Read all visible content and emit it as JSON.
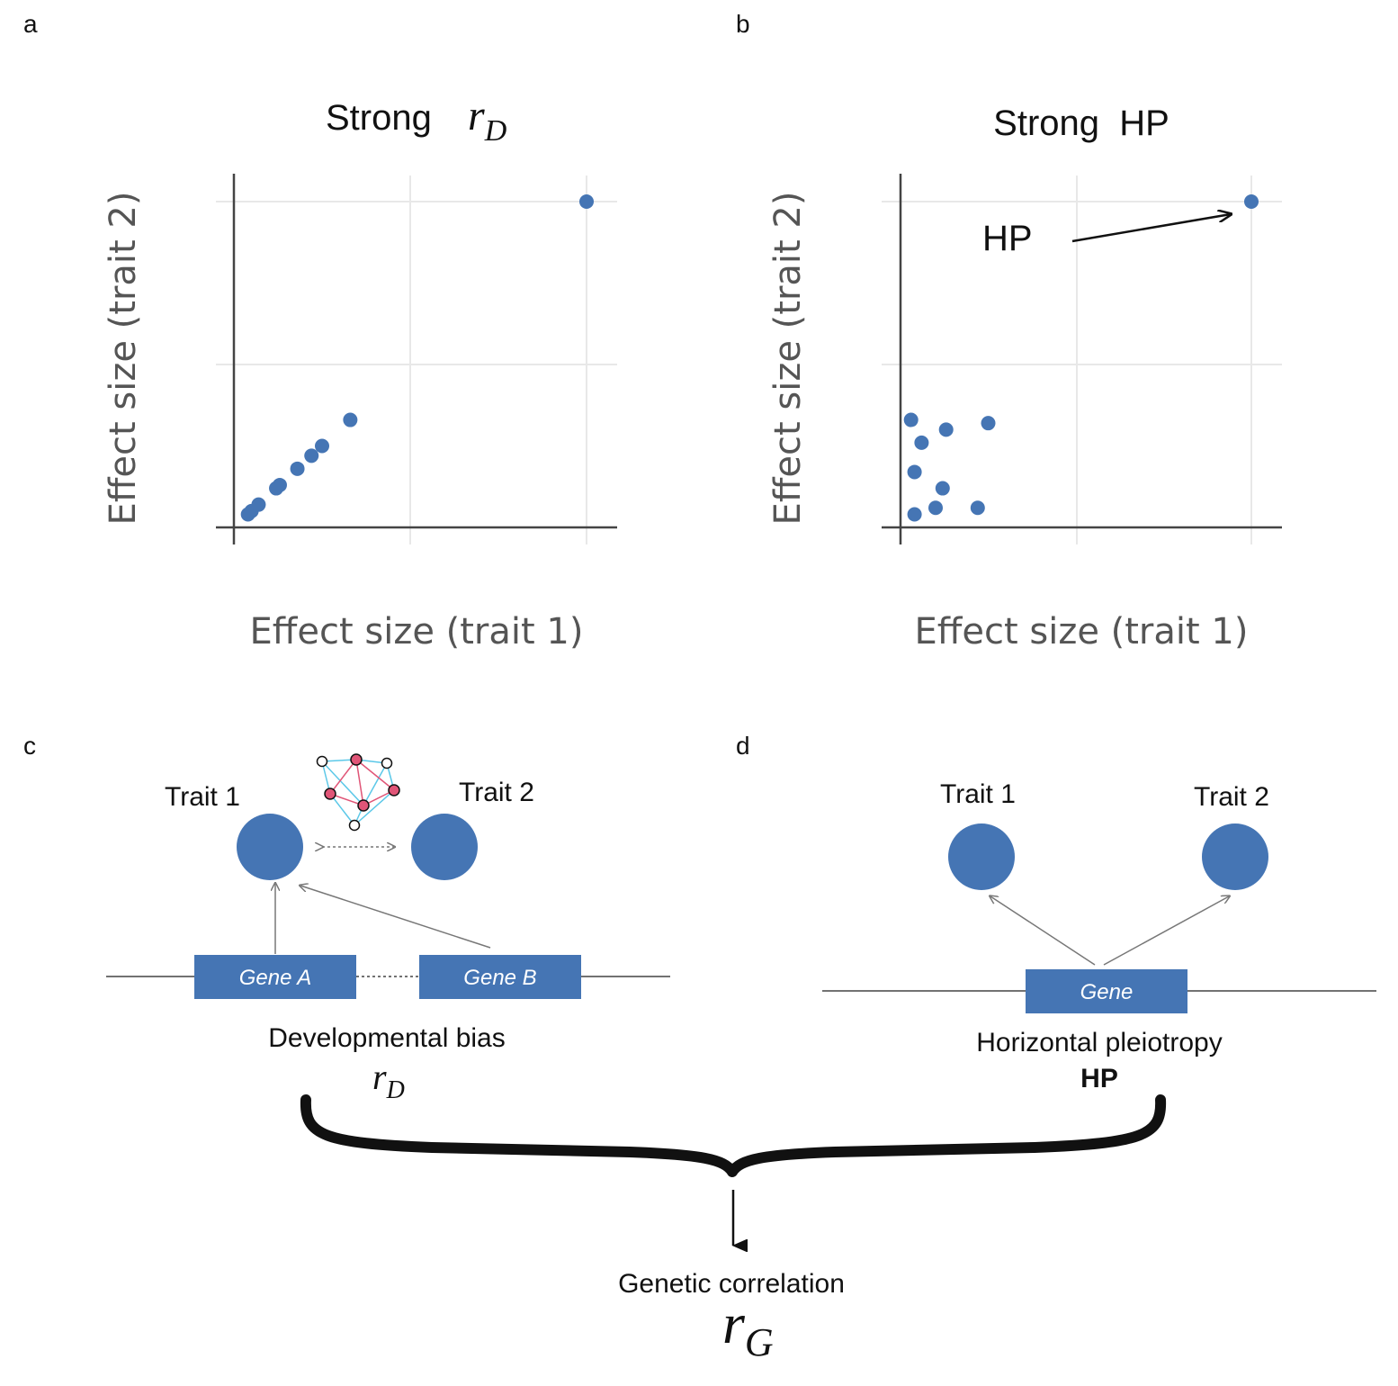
{
  "panels": {
    "a": {
      "label": "a",
      "title_prefix": "Strong",
      "title_math_main": "r",
      "title_math_sub": "D"
    },
    "b": {
      "label": "b",
      "title": "Strong  HP",
      "annotation": "HP"
    },
    "c": {
      "label": "c",
      "trait1": "Trait 1",
      "trait2": "Trait 2",
      "geneA": "Gene A",
      "geneB": "Gene B",
      "caption": "Developmental bias",
      "symbol_main": "r",
      "symbol_sub": "D"
    },
    "d": {
      "label": "d",
      "trait1": "Trait 1",
      "trait2": "Trait 2",
      "gene": "Gene",
      "caption": "Horizontal pleiotropy",
      "symbol": "HP"
    }
  },
  "bottom": {
    "caption": "Genetic correlation",
    "symbol_main": "r",
    "symbol_sub": "G"
  },
  "colors": {
    "dot": "#4575b4",
    "network_edge_blue": "#5bc8e8",
    "network_edge_red": "#e05577",
    "network_node_red": "#e05577"
  },
  "chart_data": [
    {
      "type": "scatter",
      "title": "Strong rD",
      "xlabel": "Effect size (trait 1)",
      "ylabel": "Effect size (trait 2)",
      "grid": true,
      "xlim": [
        0,
        1.1
      ],
      "ylim": [
        0,
        1.1
      ],
      "points": [
        [
          0.04,
          0.04
        ],
        [
          0.05,
          0.05
        ],
        [
          0.07,
          0.07
        ],
        [
          0.12,
          0.12
        ],
        [
          0.13,
          0.13
        ],
        [
          0.18,
          0.18
        ],
        [
          0.22,
          0.22
        ],
        [
          0.25,
          0.25
        ],
        [
          0.33,
          0.33
        ],
        [
          1.0,
          1.0
        ]
      ]
    },
    {
      "type": "scatter",
      "title": "Strong HP",
      "xlabel": "Effect size (trait 1)",
      "ylabel": "Effect size (trait 2)",
      "grid": true,
      "xlim": [
        0,
        1.1
      ],
      "ylim": [
        0,
        1.1
      ],
      "annotations": [
        {
          "text": "HP",
          "target": [
            1.0,
            1.0
          ]
        }
      ],
      "points": [
        [
          0.03,
          0.33
        ],
        [
          0.06,
          0.26
        ],
        [
          0.13,
          0.3
        ],
        [
          0.25,
          0.32
        ],
        [
          0.04,
          0.17
        ],
        [
          0.12,
          0.12
        ],
        [
          0.04,
          0.04
        ],
        [
          0.1,
          0.06
        ],
        [
          0.22,
          0.06
        ],
        [
          1.0,
          1.0
        ]
      ]
    }
  ]
}
